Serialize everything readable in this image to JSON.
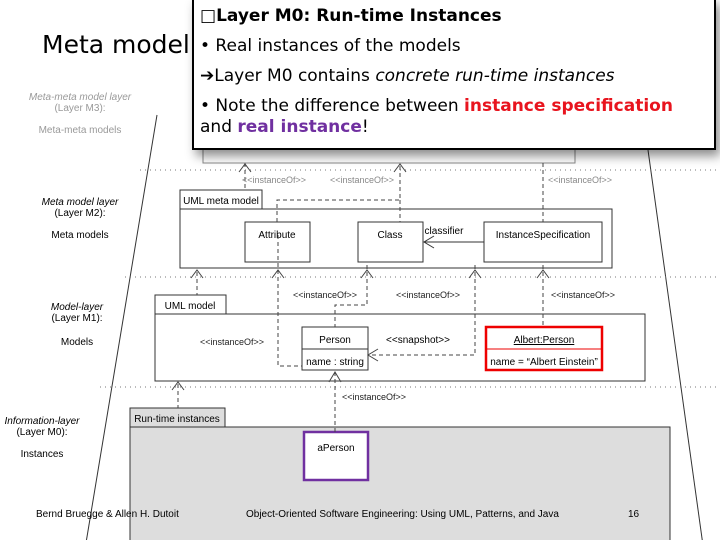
{
  "slide_title": "Meta model",
  "callout": {
    "heading": "Layer M0: Run-time Instances",
    "heading_bullet": "□",
    "bullet1": "• Real instances of the models",
    "arrow": "➔",
    "line2_plain": "Layer M0 contains ",
    "line2_italic": "concrete run-time instances",
    "line3_pre": "• Note the difference between ",
    "line3_red": "instance specification",
    "line3_mid": "and ",
    "line3_purple": "real instance",
    "line3_end": "!",
    "colors": {
      "red": "#e8141e",
      "purple": "#7030a0"
    }
  },
  "layers": [
    {
      "name": "Meta-meta model layer",
      "level": "(Layer M3):",
      "desc": "Meta-meta models"
    },
    {
      "name": "Meta model layer",
      "level": "(Layer M2):",
      "desc": "Meta models"
    },
    {
      "name": "Model-layer",
      "level": "(Layer M1):",
      "desc": "Models"
    },
    {
      "name": "Information-layer",
      "level": "(Layer M0):",
      "desc": "Instances"
    }
  ],
  "diagram": {
    "uml_meta_model": "UML meta model",
    "attribute": "Attribute",
    "class": "Class",
    "classifier": "classifier",
    "instance_spec": "InstanceSpecification",
    "uml_model": "UML model",
    "person": "Person",
    "person_attr": "name : string",
    "albert": "Albert:Person",
    "albert_attr": "name = “Albert Einstein”",
    "snapshot": "<<snapshot>>",
    "instance_of": "<<instanceOf>>",
    "runtime": "Run-time instances",
    "aperson": "aPerson"
  },
  "footer": {
    "authors": "Bernd Bruegge & Allen H. Dutoit",
    "book": "Object-Oriented Software Engineering: Using UML, Patterns, and Java",
    "page": "16"
  }
}
